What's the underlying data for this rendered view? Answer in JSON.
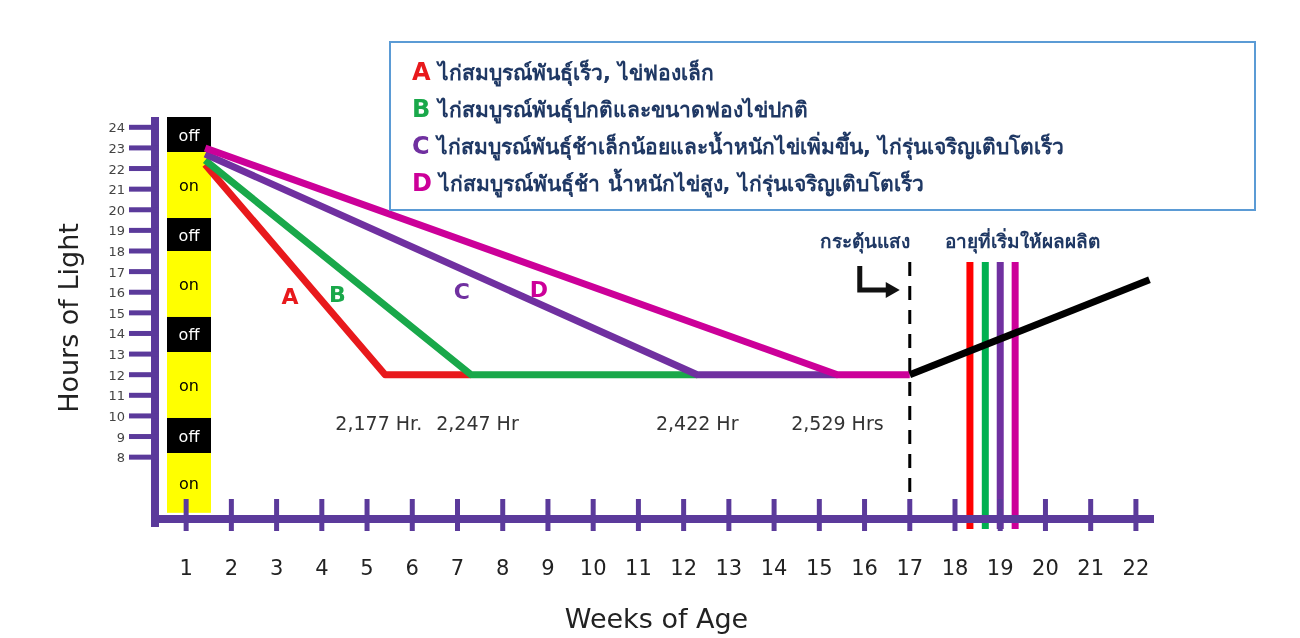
{
  "chart_data": {
    "type": "line",
    "xlabel": "Weeks of Age",
    "ylabel": "Hours of Light",
    "xlim": [
      0.4,
      22.4
    ],
    "ylim": [
      5,
      24.5
    ],
    "xticks": [
      1,
      2,
      3,
      4,
      5,
      6,
      7,
      8,
      9,
      10,
      11,
      12,
      13,
      14,
      15,
      16,
      17,
      18,
      19,
      20,
      21,
      22
    ],
    "yticks": [
      8,
      9,
      10,
      11,
      12,
      13,
      14,
      15,
      16,
      17,
      18,
      19,
      20,
      21,
      22,
      23,
      24
    ],
    "grid": false,
    "legend": "top right",
    "marker": "none",
    "line_style": "solid",
    "series": [
      {
        "name": "A ไก่สมบูรณ์พันธุ์เร็ว, ไข่ฟองเล็ก",
        "color": "#e8191c",
        "x": [
          1.42,
          5.4,
          7.3
        ],
        "values": [
          22.2,
          12,
          12
        ]
      },
      {
        "name": "B ไก่สมบูรณ์พันธุ์ปกติและขนาดฟองไข่ปกติ",
        "color": "#19a84a",
        "x": [
          1.42,
          7.3,
          12.3
        ],
        "values": [
          22.4,
          12,
          12
        ]
      },
      {
        "name": "C ไก่สมบูรณ์พันธุ์ช้าเล็กน้อยและน้ำหนักไข่เพิ่มขึ้น, ไก่รุ่นเจริญเติบโตเร็ว",
        "color": "#7030a0",
        "x": [
          1.42,
          12.3,
          15.4
        ],
        "values": [
          22.7,
          12,
          12
        ]
      },
      {
        "name": "D ไก่สมบูรณ์พันธุ์ช้า น้ำหนักไข่สูง, ไก่รุ่นเจริญเติบโตเร็ว",
        "color": "#cc0099",
        "x": [
          1.42,
          15.4,
          17
        ],
        "values": [
          23,
          12,
          12
        ]
      },
      {
        "color": "#000000",
        "x": [
          17,
          22.3
        ],
        "values": [
          12,
          16.6
        ]
      }
    ],
    "ref_lines": [
      {
        "axis": "x",
        "value": 17,
        "label": "กระตุ้นแสง",
        "color": "#000000",
        "line_style": "dashed"
      },
      {
        "axis": "x",
        "value": 18.33,
        "color": "#ff0000",
        "line_style": "solid"
      },
      {
        "axis": "x",
        "value": 18.67,
        "color": "#00b050",
        "line_style": "solid"
      },
      {
        "axis": "x",
        "value": 19.0,
        "color": "#7030a0",
        "line_style": "solid"
      },
      {
        "axis": "x",
        "value": 19.33,
        "color": "#cc0099",
        "line_style": "solid"
      }
    ],
    "bands": [
      {
        "axis": "y",
        "from": 22.8,
        "to": 24.5,
        "label": "off",
        "color": "#000000"
      },
      {
        "axis": "y",
        "from": 19.6,
        "to": 22.8,
        "label": "on",
        "color": "#ffff00"
      },
      {
        "axis": "y",
        "from": 18,
        "to": 19.6,
        "label": "off",
        "color": "#000000"
      },
      {
        "axis": "y",
        "from": 14.8,
        "to": 18,
        "label": "on",
        "color": "#ffff00"
      },
      {
        "axis": "y",
        "from": 13.1,
        "to": 14.8,
        "label": "off",
        "color": "#000000"
      },
      {
        "axis": "y",
        "from": 9.9,
        "to": 13.1,
        "label": "on",
        "color": "#ffff00"
      },
      {
        "axis": "y",
        "from": 8.2,
        "to": 9.9,
        "label": "off",
        "color": "#000000"
      },
      {
        "axis": "y",
        "from": 5.3,
        "to": 8.2,
        "label": "on",
        "color": "#ffff00"
      }
    ],
    "annotations": [
      "A",
      "B",
      "C",
      "D",
      "2,177 Hr.",
      "2,247 Hr",
      "2,422 Hr",
      "2,529 Hrs",
      "อายุที่เริ่มให้ผลผลิต"
    ]
  }
}
